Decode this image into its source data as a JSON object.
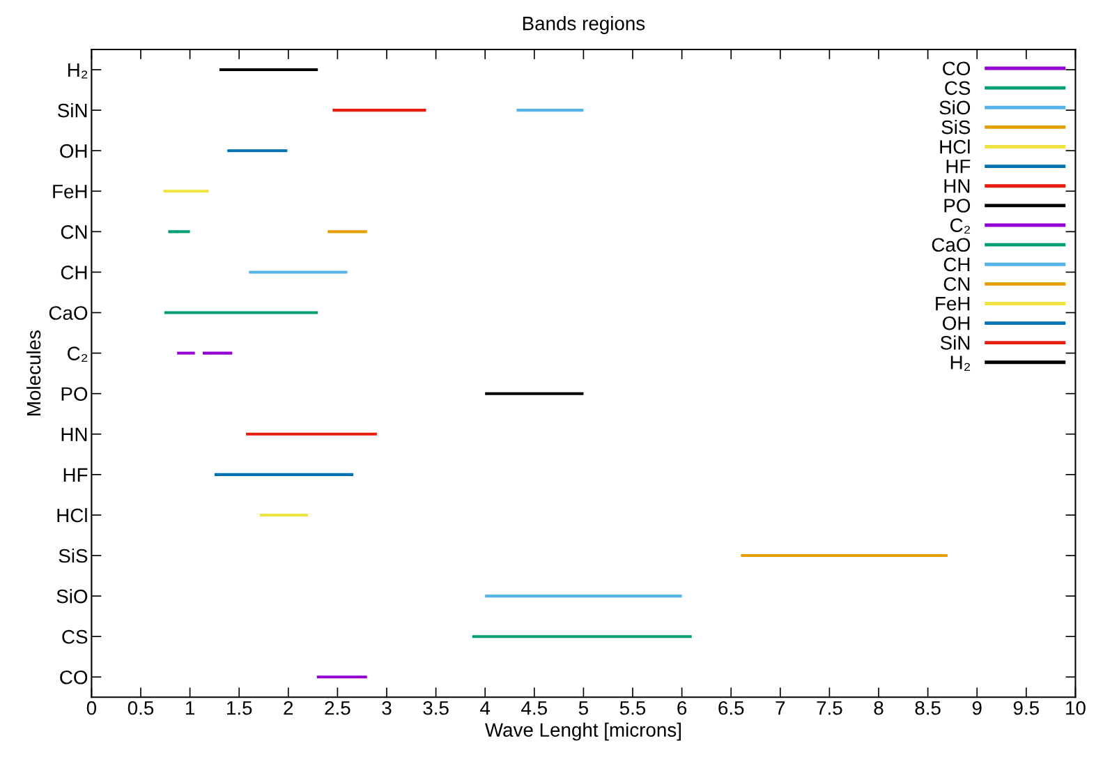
{
  "chart_data": {
    "type": "bar",
    "orientation": "horizontal",
    "title": "Bands regions",
    "xlabel": "Wave Lenght [microns]",
    "ylabel": "Molecules",
    "categories": [
      "H₂",
      "SiN",
      "OH",
      "FeH",
      "CN",
      "CH",
      "CaO",
      "C₂",
      "PO",
      "HN",
      "HF",
      "HCl",
      "SiS",
      "SiO",
      "CS",
      "CO"
    ],
    "xlim": [
      0,
      10
    ],
    "xticks": [
      0,
      0.5,
      1,
      1.5,
      2,
      2.5,
      3,
      3.5,
      4,
      4.5,
      5,
      5.5,
      6,
      6.5,
      7,
      7.5,
      8,
      8.5,
      9,
      9.5,
      10
    ],
    "grid": false,
    "legend": "top right",
    "series": [
      {
        "name": "CO",
        "color": "#9400d3",
        "values": [
          null,
          null,
          null,
          null,
          null,
          null,
          null,
          null,
          null,
          null,
          null,
          null,
          null,
          null,
          null,
          0.51
        ],
        "base": [
          null,
          null,
          null,
          null,
          null,
          null,
          null,
          null,
          null,
          null,
          null,
          null,
          null,
          null,
          null,
          2.29
        ]
      },
      {
        "name": "CS",
        "color": "#009e73",
        "values": [
          null,
          null,
          null,
          null,
          null,
          null,
          null,
          null,
          null,
          null,
          null,
          null,
          null,
          null,
          2.23,
          null
        ],
        "base": [
          null,
          null,
          null,
          null,
          null,
          null,
          null,
          null,
          null,
          null,
          null,
          null,
          null,
          null,
          3.87,
          null
        ]
      },
      {
        "name": "SiO",
        "color": "#56b4e9",
        "values": [
          null,
          null,
          null,
          null,
          null,
          null,
          null,
          null,
          null,
          null,
          null,
          null,
          null,
          2.0,
          null,
          null
        ],
        "base": [
          null,
          null,
          null,
          null,
          null,
          null,
          null,
          null,
          null,
          null,
          null,
          null,
          null,
          4.0,
          null,
          null
        ]
      },
      {
        "name": "SiS",
        "color": "#e69f00",
        "values": [
          null,
          null,
          null,
          null,
          null,
          null,
          null,
          null,
          null,
          null,
          null,
          null,
          2.1,
          null,
          null,
          null
        ],
        "base": [
          null,
          null,
          null,
          null,
          null,
          null,
          null,
          null,
          null,
          null,
          null,
          null,
          6.6,
          null,
          null,
          null
        ]
      },
      {
        "name": "HCl",
        "color": "#f0e442",
        "values": [
          null,
          null,
          null,
          null,
          null,
          null,
          null,
          null,
          null,
          null,
          null,
          0.49,
          null,
          null,
          null,
          null
        ],
        "base": [
          null,
          null,
          null,
          null,
          null,
          null,
          null,
          null,
          null,
          null,
          null,
          1.71,
          null,
          null,
          null,
          null
        ]
      },
      {
        "name": "HF",
        "color": "#0072b2",
        "values": [
          null,
          null,
          null,
          null,
          null,
          null,
          null,
          null,
          null,
          null,
          1.41,
          null,
          null,
          null,
          null,
          null
        ],
        "base": [
          null,
          null,
          null,
          null,
          null,
          null,
          null,
          null,
          null,
          null,
          1.25,
          null,
          null,
          null,
          null,
          null
        ]
      },
      {
        "name": "HN",
        "color": "#e51e10",
        "values": [
          null,
          null,
          null,
          null,
          null,
          null,
          null,
          null,
          null,
          1.33,
          null,
          null,
          null,
          null,
          null,
          null
        ],
        "base": [
          null,
          null,
          null,
          null,
          null,
          null,
          null,
          null,
          null,
          1.57,
          null,
          null,
          null,
          null,
          null,
          null
        ]
      },
      {
        "name": "PO",
        "color": "#000000",
        "values": [
          null,
          null,
          null,
          null,
          null,
          null,
          null,
          null,
          1.0,
          null,
          null,
          null,
          null,
          null,
          null,
          null
        ],
        "base": [
          null,
          null,
          null,
          null,
          null,
          null,
          null,
          null,
          4.0,
          null,
          null,
          null,
          null,
          null,
          null,
          null
        ]
      },
      {
        "name": "C₂",
        "color": "#9400d3",
        "values": [
          null,
          null,
          null,
          null,
          null,
          null,
          null,
          0.18,
          null,
          null,
          null,
          null,
          null,
          null,
          null,
          null
        ],
        "base": [
          null,
          null,
          null,
          null,
          null,
          null,
          null,
          0.87,
          null,
          null,
          null,
          null,
          null,
          null,
          null,
          null
        ]
      },
      {
        "color": "#9400d3",
        "values": [
          null,
          null,
          null,
          null,
          null,
          null,
          null,
          0.3,
          null,
          null,
          null,
          null,
          null,
          null,
          null,
          null
        ],
        "base": [
          null,
          null,
          null,
          null,
          null,
          null,
          null,
          1.13,
          null,
          null,
          null,
          null,
          null,
          null,
          null,
          null
        ]
      },
      {
        "name": "CaO",
        "color": "#009e73",
        "values": [
          null,
          null,
          null,
          null,
          null,
          null,
          1.56,
          null,
          null,
          null,
          null,
          null,
          null,
          null,
          null,
          null
        ],
        "base": [
          null,
          null,
          null,
          null,
          null,
          null,
          0.74,
          null,
          null,
          null,
          null,
          null,
          null,
          null,
          null,
          null
        ]
      },
      {
        "name": "CH",
        "color": "#56b4e9",
        "values": [
          null,
          null,
          null,
          null,
          null,
          1.0,
          null,
          null,
          null,
          null,
          null,
          null,
          null,
          null,
          null,
          null
        ],
        "base": [
          null,
          null,
          null,
          null,
          null,
          1.6,
          null,
          null,
          null,
          null,
          null,
          null,
          null,
          null,
          null,
          null
        ]
      },
      {
        "name": "CN",
        "color": "#e69f00",
        "values": [
          null,
          null,
          null,
          null,
          0.4,
          null,
          null,
          null,
          null,
          null,
          null,
          null,
          null,
          null,
          null,
          null
        ],
        "base": [
          null,
          null,
          null,
          null,
          2.4,
          null,
          null,
          null,
          null,
          null,
          null,
          null,
          null,
          null,
          null,
          null
        ]
      },
      {
        "color": "#009e73",
        "values": [
          null,
          null,
          null,
          null,
          0.22,
          null,
          null,
          null,
          null,
          null,
          null,
          null,
          null,
          null,
          null,
          null
        ],
        "base": [
          null,
          null,
          null,
          null,
          0.78,
          null,
          null,
          null,
          null,
          null,
          null,
          null,
          null,
          null,
          null,
          null
        ]
      },
      {
        "name": "FeH",
        "color": "#f0e442",
        "values": [
          null,
          null,
          null,
          0.46,
          null,
          null,
          null,
          null,
          null,
          null,
          null,
          null,
          null,
          null,
          null,
          null
        ],
        "base": [
          null,
          null,
          null,
          0.73,
          null,
          null,
          null,
          null,
          null,
          null,
          null,
          null,
          null,
          null,
          null,
          null
        ]
      },
      {
        "name": "OH",
        "color": "#0072b2",
        "values": [
          null,
          null,
          0.61,
          null,
          null,
          null,
          null,
          null,
          null,
          null,
          null,
          null,
          null,
          null,
          null,
          null
        ],
        "base": [
          null,
          null,
          1.38,
          null,
          null,
          null,
          null,
          null,
          null,
          null,
          null,
          null,
          null,
          null,
          null,
          null
        ]
      },
      {
        "name": "SiN",
        "color": "#e51e10",
        "values": [
          null,
          0.95,
          null,
          null,
          null,
          null,
          null,
          null,
          null,
          null,
          null,
          null,
          null,
          null,
          null,
          null
        ],
        "base": [
          null,
          2.45,
          null,
          null,
          null,
          null,
          null,
          null,
          null,
          null,
          null,
          null,
          null,
          null,
          null,
          null
        ]
      },
      {
        "color": "#56b4e9",
        "values": [
          null,
          0.68,
          null,
          null,
          null,
          null,
          null,
          null,
          null,
          null,
          null,
          null,
          null,
          null,
          null,
          null
        ],
        "base": [
          null,
          4.32,
          null,
          null,
          null,
          null,
          null,
          null,
          null,
          null,
          null,
          null,
          null,
          null,
          null,
          null
        ]
      },
      {
        "name": "H₂",
        "color": "#000000",
        "values": [
          1.0,
          null,
          null,
          null,
          null,
          null,
          null,
          null,
          null,
          null,
          null,
          null,
          null,
          null,
          null,
          null
        ],
        "base": [
          1.3,
          null,
          null,
          null,
          null,
          null,
          null,
          null,
          null,
          null,
          null,
          null,
          null,
          null,
          null,
          null
        ]
      }
    ]
  }
}
